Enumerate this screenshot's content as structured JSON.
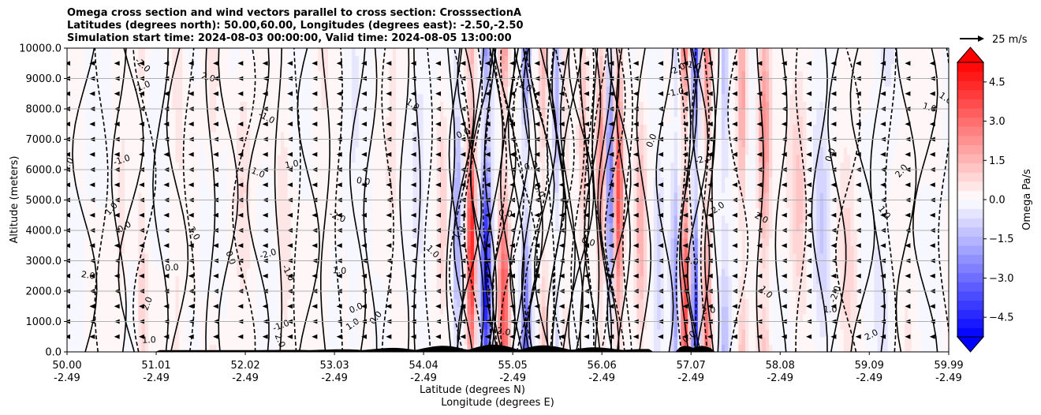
{
  "chart_data": {
    "type": "heatmap",
    "title_lines": [
      "Omega cross section and wind vectors parallel to cross section: CrosssectionA",
      "Latitudes (degrees north): 50.00,60.00, Longitudes (degrees east): -2.50,-2.50",
      "Simulation start time: 2024-08-03 00:00:00, Valid time: 2024-08-05 13:00:00"
    ],
    "ylabel": "Altitude (meters)",
    "xlabel_lines": [
      "Latitude (degrees N)",
      "Longitude (degrees E)"
    ],
    "ylim": [
      0,
      10000
    ],
    "y_ticks": [
      "0.0",
      "1000.0",
      "2000.0",
      "3000.0",
      "4000.0",
      "5000.0",
      "6000.0",
      "7000.0",
      "8000.0",
      "9000.0",
      "10000.0"
    ],
    "x_range": [
      50.0,
      59.99
    ],
    "x_ticks": [
      {
        "lat": "50.00",
        "lon": "-2.49"
      },
      {
        "lat": "51.01",
        "lon": "-2.49"
      },
      {
        "lat": "52.02",
        "lon": "-2.49"
      },
      {
        "lat": "53.03",
        "lon": "-2.49"
      },
      {
        "lat": "54.04",
        "lon": "-2.49"
      },
      {
        "lat": "55.05",
        "lon": "-2.49"
      },
      {
        "lat": "56.06",
        "lon": "-2.49"
      },
      {
        "lat": "57.07",
        "lon": "-2.49"
      },
      {
        "lat": "58.08",
        "lon": "-2.49"
      },
      {
        "lat": "59.09",
        "lon": "-2.49"
      },
      {
        "lat": "59.99",
        "lon": "-2.49"
      }
    ],
    "colorbar": {
      "label": "Omega Pa/s",
      "range": [
        -5.25,
        5.25
      ],
      "step": 0.35,
      "ticks": [
        "4.5",
        "3.0",
        "1.5",
        "0.0",
        "−1.5",
        "−3.0",
        "−4.5"
      ],
      "cmap": "bwr"
    },
    "reference_vector": "25 m/s",
    "grid": true,
    "omega_bands": [
      {
        "lat": 50.6,
        "w": 0.08,
        "v": 0.5
      },
      {
        "lat": 50.85,
        "w": 0.06,
        "v": 0.9
      },
      {
        "lat": 51.25,
        "w": 0.07,
        "v": 0.6
      },
      {
        "lat": 51.65,
        "w": 0.08,
        "v": 0.5
      },
      {
        "lat": 52.0,
        "w": 0.1,
        "v": 0.6
      },
      {
        "lat": 52.45,
        "w": 0.08,
        "v": 0.7
      },
      {
        "lat": 52.9,
        "w": 0.08,
        "v": 0.5
      },
      {
        "lat": 53.25,
        "w": 0.06,
        "v": -0.4
      },
      {
        "lat": 53.7,
        "w": 0.07,
        "v": 0.5
      },
      {
        "lat": 54.0,
        "w": 0.07,
        "v": -0.5
      },
      {
        "lat": 54.25,
        "w": 0.06,
        "v": 0.8
      },
      {
        "lat": 54.42,
        "w": 0.05,
        "v": -2.0
      },
      {
        "lat": 54.58,
        "w": 0.05,
        "v": 5.0
      },
      {
        "lat": 54.75,
        "w": 0.06,
        "v": -5.0
      },
      {
        "lat": 54.95,
        "w": 0.06,
        "v": 3.5
      },
      {
        "lat": 55.2,
        "w": 0.05,
        "v": -3.0
      },
      {
        "lat": 55.4,
        "w": 0.05,
        "v": 1.5
      },
      {
        "lat": 55.55,
        "w": 0.04,
        "v": -1.5
      },
      {
        "lat": 55.65,
        "w": 0.05,
        "v": 0.8
      },
      {
        "lat": 55.85,
        "w": 0.05,
        "v": 1.2
      },
      {
        "lat": 56.05,
        "w": 0.05,
        "v": 2.5
      },
      {
        "lat": 56.15,
        "w": 0.03,
        "v": -3.5
      },
      {
        "lat": 56.25,
        "w": 0.05,
        "v": 4.0
      },
      {
        "lat": 56.5,
        "w": 0.06,
        "v": 1.5
      },
      {
        "lat": 56.7,
        "w": 0.05,
        "v": -1.0
      },
      {
        "lat": 56.9,
        "w": 0.05,
        "v": -2.0
      },
      {
        "lat": 57.0,
        "w": 0.05,
        "v": 4.0
      },
      {
        "lat": 57.12,
        "w": 0.04,
        "v": -4.5
      },
      {
        "lat": 57.25,
        "w": 0.05,
        "v": 3.0
      },
      {
        "lat": 57.45,
        "w": 0.05,
        "v": -1.5
      },
      {
        "lat": 57.65,
        "w": 0.05,
        "v": 2.0
      },
      {
        "lat": 57.9,
        "w": 0.07,
        "v": 2.5
      },
      {
        "lat": 58.3,
        "w": 0.1,
        "v": 1.2
      },
      {
        "lat": 58.55,
        "w": 0.1,
        "v": -1.0
      },
      {
        "lat": 58.85,
        "w": 0.1,
        "v": 0.8
      },
      {
        "lat": 59.25,
        "w": 0.12,
        "v": -0.5
      },
      {
        "lat": 59.55,
        "w": 0.12,
        "v": 0.4
      }
    ],
    "contour_labels": [
      "0.0",
      "-1.0",
      "1.0",
      "2.0",
      "-2.0"
    ]
  }
}
